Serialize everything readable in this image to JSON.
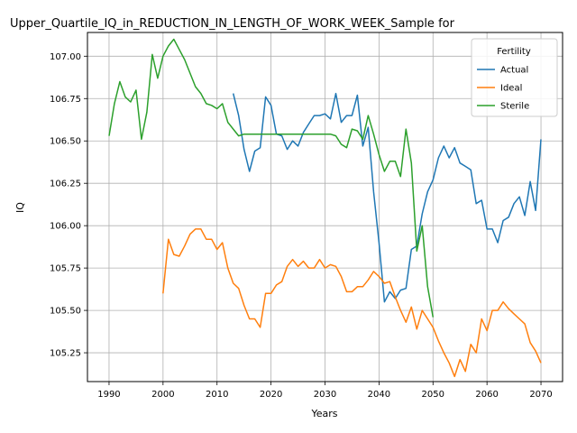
{
  "chart_data": {
    "type": "line",
    "title": "Upper_Quartile_IQ_in_REDUCTION_IN_LENGTH_OF_WORK_WEEK_Sample for",
    "xlabel": "Years",
    "ylabel": "IQ",
    "xlim": [
      1986,
      2074
    ],
    "ylim": [
      105.08,
      107.14
    ],
    "xticks": [
      1990,
      2000,
      2010,
      2020,
      2030,
      2040,
      2050,
      2060,
      2070
    ],
    "yticks": [
      105.25,
      105.5,
      105.75,
      106.0,
      106.25,
      106.5,
      106.75,
      107.0
    ],
    "ytick_labels": [
      "105.25",
      "105.50",
      "105.75",
      "106.00",
      "106.25",
      "106.50",
      "106.75",
      "107.00"
    ],
    "grid": true,
    "legend": {
      "title": "Fertility",
      "position": "top-right"
    },
    "series": [
      {
        "name": "Actual",
        "color": "#1f77b4",
        "x": [
          2013,
          2014,
          2015,
          2016,
          2017,
          2018,
          2019,
          2020,
          2021,
          2022,
          2023,
          2024,
          2025,
          2026,
          2027,
          2028,
          2029,
          2030,
          2031,
          2032,
          2033,
          2034,
          2035,
          2036,
          2037,
          2038,
          2039,
          2040,
          2041,
          2042,
          2043,
          2044,
          2045,
          2046,
          2047,
          2048,
          2049,
          2050,
          2051,
          2052,
          2053,
          2054,
          2055,
          2056,
          2057,
          2058,
          2059,
          2060,
          2061,
          2062,
          2063,
          2064,
          2065,
          2066,
          2067,
          2068,
          2069,
          2070
        ],
        "y": [
          106.78,
          106.65,
          106.45,
          106.32,
          106.44,
          106.46,
          106.76,
          106.71,
          106.54,
          106.53,
          106.45,
          106.5,
          106.47,
          106.55,
          106.6,
          106.65,
          106.65,
          106.66,
          106.63,
          106.78,
          106.61,
          106.65,
          106.65,
          106.77,
          106.47,
          106.58,
          106.2,
          105.9,
          105.55,
          105.61,
          105.57,
          105.62,
          105.63,
          105.86,
          105.88,
          106.07,
          106.2,
          106.27,
          106.4,
          106.47,
          106.4,
          106.46,
          106.37,
          106.35,
          106.33,
          106.13,
          106.15,
          105.98,
          105.98,
          105.9,
          106.03,
          106.05,
          106.13,
          106.17,
          106.06,
          106.26,
          106.09,
          106.51
        ]
      },
      {
        "name": "Ideal",
        "color": "#ff7f0e",
        "x": [
          2000,
          2001,
          2002,
          2003,
          2004,
          2005,
          2006,
          2007,
          2008,
          2009,
          2010,
          2011,
          2012,
          2013,
          2014,
          2015,
          2016,
          2017,
          2018,
          2019,
          2020,
          2021,
          2022,
          2023,
          2024,
          2025,
          2026,
          2027,
          2028,
          2029,
          2030,
          2031,
          2032,
          2033,
          2034,
          2035,
          2036,
          2037,
          2038,
          2039,
          2040,
          2041,
          2042,
          2043,
          2044,
          2045,
          2046,
          2047,
          2048,
          2049,
          2050,
          2051,
          2052,
          2053,
          2054,
          2055,
          2056,
          2057,
          2058,
          2059,
          2060,
          2061,
          2062,
          2063,
          2064,
          2065,
          2066,
          2067,
          2068,
          2069,
          2070
        ],
        "y": [
          105.6,
          105.92,
          105.83,
          105.82,
          105.88,
          105.95,
          105.98,
          105.98,
          105.92,
          105.92,
          105.86,
          105.9,
          105.75,
          105.66,
          105.63,
          105.53,
          105.45,
          105.45,
          105.4,
          105.6,
          105.6,
          105.65,
          105.67,
          105.76,
          105.8,
          105.76,
          105.79,
          105.75,
          105.75,
          105.8,
          105.75,
          105.77,
          105.76,
          105.7,
          105.61,
          105.61,
          105.64,
          105.64,
          105.68,
          105.73,
          105.7,
          105.66,
          105.67,
          105.58,
          105.5,
          105.43,
          105.52,
          105.39,
          105.5,
          105.45,
          105.4,
          105.32,
          105.25,
          105.19,
          105.11,
          105.21,
          105.14,
          105.3,
          105.25,
          105.45,
          105.38,
          105.5,
          105.5,
          105.55,
          105.51,
          105.48,
          105.45,
          105.42,
          105.31,
          105.26,
          105.19
        ]
      },
      {
        "name": "Sterile",
        "color": "#2ca02c",
        "x": [
          1990,
          1991,
          1992,
          1993,
          1994,
          1995,
          1996,
          1997,
          1998,
          1999,
          2000,
          2001,
          2002,
          2003,
          2004,
          2005,
          2006,
          2007,
          2008,
          2009,
          2010,
          2011,
          2012,
          2013,
          2014,
          2015,
          2016,
          2017,
          2018,
          2019,
          2020,
          2021,
          2022,
          2023,
          2024,
          2025,
          2026,
          2027,
          2028,
          2029,
          2030,
          2031,
          2032,
          2033,
          2034,
          2035,
          2036,
          2037,
          2038,
          2039,
          2040,
          2041,
          2042,
          2043,
          2044,
          2045,
          2046,
          2047,
          2048,
          2049,
          2050
        ],
        "y": [
          106.53,
          106.72,
          106.85,
          106.76,
          106.73,
          106.8,
          106.51,
          106.67,
          107.01,
          106.87,
          107.0,
          107.06,
          107.1,
          107.04,
          106.98,
          106.9,
          106.82,
          106.78,
          106.72,
          106.71,
          106.69,
          106.72,
          106.61,
          106.57,
          106.53,
          106.54,
          106.54,
          106.54,
          106.54,
          106.54,
          106.54,
          106.54,
          106.54,
          106.54,
          106.54,
          106.54,
          106.54,
          106.54,
          106.54,
          106.54,
          106.54,
          106.54,
          106.53,
          106.48,
          106.46,
          106.57,
          106.56,
          106.51,
          106.65,
          106.54,
          106.42,
          106.32,
          106.38,
          106.38,
          106.29,
          106.57,
          106.37,
          105.85,
          106.0,
          105.64,
          105.46
        ]
      }
    ]
  }
}
